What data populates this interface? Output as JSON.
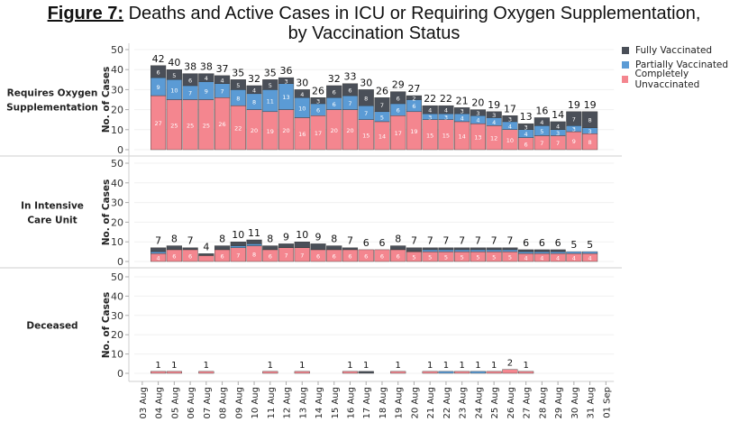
{
  "title": {
    "figure_label": "Figure 7:",
    "line1": "Deaths and Active Cases in ICU or Requiring Oxygen Supplementation,",
    "line2": "by Vaccination Status"
  },
  "legend": [
    {
      "label": "Fully Vaccinated",
      "color": "#4a4f58"
    },
    {
      "label": "Partially Vaccinated",
      "color": "#5b9bd5"
    },
    {
      "label": "Completely Unvaccinated",
      "color": "#f4868f"
    }
  ],
  "chart_data": {
    "type": "bar",
    "stacked": true,
    "ylabel": "No. of Cases",
    "ylim": [
      0,
      50
    ],
    "yticks": [
      0,
      10,
      20,
      30,
      40,
      50
    ],
    "categories": [
      "03 Aug",
      "04 Aug",
      "05 Aug",
      "06 Aug",
      "07 Aug",
      "08 Aug",
      "09 Aug",
      "10 Aug",
      "11 Aug",
      "12 Aug",
      "13 Aug",
      "14 Aug",
      "15 Aug",
      "16 Aug",
      "17 Aug",
      "18 Aug",
      "19 Aug",
      "20 Aug",
      "21 Aug",
      "22 Aug",
      "23 Aug",
      "24 Aug",
      "25 Aug",
      "26 Aug",
      "27 Aug",
      "28 Aug",
      "29 Aug",
      "30 Aug",
      "31 Aug",
      "01 Sep"
    ],
    "panels": [
      {
        "label": "Requires Oxygen Supplementation",
        "series": [
          {
            "name": "Completely Unvaccinated",
            "values": [
              0,
              27,
              25,
              25,
              25,
              26,
              22,
              20,
              19,
              20,
              16,
              17,
              20,
              20,
              15,
              14,
              17,
              19,
              15,
              15,
              14,
              13,
              12,
              10,
              6,
              7,
              7,
              9,
              8,
              0
            ]
          },
          {
            "name": "Partially Vaccinated",
            "values": [
              0,
              9,
              10,
              7,
              9,
              7,
              8,
              8,
              11,
              13,
              10,
              6,
              6,
              7,
              7,
              5,
              6,
              6,
              3,
              3,
              4,
              4,
              4,
              4,
              4,
              5,
              3,
              3,
              3,
              0
            ]
          },
          {
            "name": "Fully Vaccinated",
            "values": [
              0,
              6,
              5,
              6,
              4,
              4,
              5,
              4,
              5,
              3,
              4,
              3,
              6,
              6,
              8,
              7,
              6,
              2,
              4,
              4,
              3,
              3,
              3,
              3,
              3,
              4,
              4,
              7,
              8,
              0
            ]
          }
        ],
        "totals": [
          null,
          42,
          40,
          38,
          38,
          37,
          35,
          32,
          35,
          36,
          30,
          26,
          32,
          33,
          30,
          26,
          29,
          27,
          22,
          22,
          21,
          20,
          19,
          17,
          13,
          16,
          14,
          19,
          19,
          null
        ]
      },
      {
        "label": "In Intensive Care Unit",
        "series": [
          {
            "name": "Completely Unvaccinated",
            "values": [
              0,
              4,
              6,
              6,
              3,
              6,
              7,
              8,
              6,
              7,
              7,
              6,
              6,
              6,
              6,
              6,
              6,
              5,
              5,
              5,
              5,
              5,
              5,
              5,
              4,
              4,
              4,
              4,
              4,
              0
            ]
          },
          {
            "name": "Partially Vaccinated",
            "values": [
              0,
              1,
              0,
              0,
              0,
              0,
              1,
              1,
              0,
              0,
              0,
              0,
              0,
              0,
              0,
              0,
              0,
              0,
              1,
              1,
              1,
              1,
              1,
              1,
              1,
              1,
              1,
              1,
              1,
              0
            ]
          },
          {
            "name": "Fully Vaccinated",
            "values": [
              0,
              2,
              2,
              1,
              1,
              2,
              2,
              2,
              2,
              2,
              3,
              3,
              2,
              1,
              0,
              0,
              2,
              2,
              1,
              1,
              1,
              1,
              1,
              1,
              1,
              1,
              1,
              0,
              0,
              0
            ]
          }
        ],
        "totals": [
          null,
          7,
          8,
          7,
          4,
          8,
          10,
          11,
          8,
          9,
          10,
          9,
          8,
          7,
          6,
          6,
          8,
          7,
          7,
          7,
          7,
          7,
          7,
          7,
          6,
          6,
          6,
          5,
          5,
          null
        ]
      },
      {
        "label": "Deceased",
        "series": [
          {
            "name": "Completely Unvaccinated",
            "values": [
              0,
              1,
              1,
              0,
              1,
              0,
              0,
              0,
              1,
              0,
              1,
              0,
              0,
              1,
              0,
              0,
              1,
              0,
              1,
              0,
              1,
              0,
              1,
              2,
              1,
              0,
              0,
              0,
              0,
              0
            ]
          },
          {
            "name": "Partially Vaccinated",
            "values": [
              0,
              0,
              0,
              0,
              0,
              0,
              0,
              0,
              0,
              0,
              0,
              0,
              0,
              0,
              0,
              0,
              0,
              0,
              0,
              1,
              0,
              1,
              0,
              0,
              0,
              0,
              0,
              0,
              0,
              0
            ]
          },
          {
            "name": "Fully Vaccinated",
            "values": [
              0,
              0,
              0,
              0,
              0,
              0,
              0,
              0,
              0,
              0,
              0,
              0,
              0,
              0,
              1,
              0,
              0,
              0,
              0,
              0,
              0,
              0,
              0,
              0,
              0,
              0,
              0,
              0,
              0,
              0
            ]
          }
        ],
        "totals": [
          null,
          1,
          1,
          null,
          1,
          null,
          null,
          null,
          1,
          null,
          1,
          null,
          null,
          1,
          1,
          null,
          1,
          null,
          1,
          1,
          1,
          1,
          1,
          2,
          1,
          null,
          null,
          null,
          null,
          null
        ]
      }
    ]
  }
}
